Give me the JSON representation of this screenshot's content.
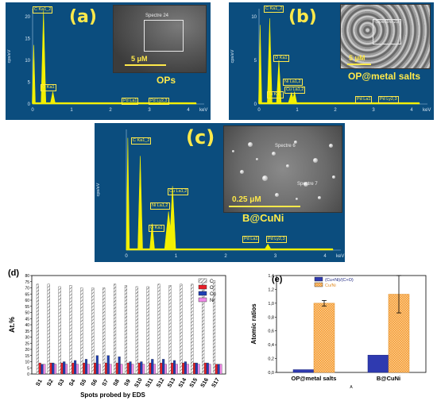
{
  "panels": {
    "a": {
      "label": "(a)",
      "sample": "OPs",
      "scale": "5 μM",
      "spectrum_label": "Spectre 24",
      "y_axis_label": "cps/eV",
      "x_axis_label": "keV",
      "y_ticks": [
        "0",
        "5",
        "10",
        "15",
        "20"
      ],
      "x_ticks": [
        "0",
        "1",
        "2",
        "3",
        "4"
      ],
      "peak_labels": [
        "C Ka1_2",
        "O Ka1",
        "Pd La1",
        "Pd Ly2,3"
      ]
    },
    "b": {
      "label": "(b)",
      "sample": "OP@metal salts",
      "scale": "5 μM",
      "spectrum_label": "Spectre 23",
      "y_axis_label": "cps/eV",
      "x_axis_label": "keV",
      "y_ticks": [
        "0",
        "5",
        "10"
      ],
      "x_ticks": [
        "0",
        "1",
        "2",
        "3",
        "4"
      ],
      "peak_labels": [
        "C Ka1_2",
        "O Ka1",
        "Ni La1,2",
        "Ni Ka1",
        "Cu La1,2",
        "Pd La1",
        "Pd Ly2,3"
      ]
    },
    "c": {
      "label": "(c)",
      "sample": "B@CuNi",
      "scale": "0.25 μM",
      "spectrum_labels": [
        "Spectre 6",
        "Spectre 7"
      ],
      "y_axis_label": "cps/eV",
      "x_axis_label": "keV",
      "x_ticks": [
        "0",
        "1",
        "2",
        "3",
        "4"
      ],
      "peak_labels": [
        "C Ka1_2",
        "O Ka1",
        "Ni La1,2",
        "Cu La1,2",
        "Pd La1",
        "Pd Ly2,3"
      ]
    }
  },
  "chart_data": [
    {
      "type": "bar",
      "panel_label": "(d)",
      "xlabel": "Spots probed by EDS",
      "ylabel": "At.%",
      "ylim": [
        0,
        80
      ],
      "y_ticks": [
        0,
        5,
        10,
        15,
        20,
        25,
        30,
        35,
        40,
        45,
        50,
        55,
        60,
        65,
        70,
        75,
        80
      ],
      "categories": [
        "S1",
        "S2",
        "S3",
        "S4",
        "S5",
        "S6",
        "S7",
        "S8",
        "S9",
        "S10",
        "S11",
        "S12",
        "S13",
        "S14",
        "S15",
        "S16",
        "S17"
      ],
      "series": [
        {
          "name": "C",
          "color": "#ffffff",
          "values": [
            73,
            73,
            71,
            72,
            70,
            70,
            70,
            73,
            72,
            71,
            71,
            73,
            72,
            73,
            73,
            73,
            76
          ]
        },
        {
          "name": "O",
          "color": "#e8202a",
          "values": [
            9,
            9,
            9,
            9,
            9,
            9,
            9,
            9,
            9,
            9,
            9,
            9,
            9,
            9,
            9,
            9,
            8
          ]
        },
        {
          "name": "Cu",
          "color": "#1f3fb4",
          "values": [
            8,
            9,
            10,
            11,
            12,
            15,
            15,
            14,
            10,
            10,
            12,
            12,
            11,
            10,
            9,
            9,
            8
          ]
        },
        {
          "name": "Ni",
          "color": "#f089e8",
          "values": [
            8,
            8,
            8,
            8,
            8,
            8,
            8,
            8,
            8,
            8,
            8,
            8,
            8,
            8,
            8,
            8,
            8
          ]
        }
      ],
      "legend_position": "top-right"
    },
    {
      "type": "bar",
      "panel_label": "(e)",
      "xlabel": "A",
      "ylabel": "Atomic ratios",
      "ylim": [
        0,
        1.4
      ],
      "y_ticks": [
        "0,0",
        "0,2",
        "0,4",
        "0,6",
        "0,8",
        "1,0",
        "1,2",
        "1,4"
      ],
      "categories": [
        "OP@metal salts",
        "B@CuNi"
      ],
      "series": [
        {
          "name": "(Cu+Ni)/(C+O)",
          "color": "#2f3ab0",
          "values": [
            0.04,
            0.25
          ]
        },
        {
          "name": "Cu/Ni",
          "color": "#f6a03c",
          "values": [
            1.0,
            1.13
          ],
          "errors": [
            0.04,
            0.27
          ]
        }
      ],
      "legend_position": "top-left"
    }
  ]
}
